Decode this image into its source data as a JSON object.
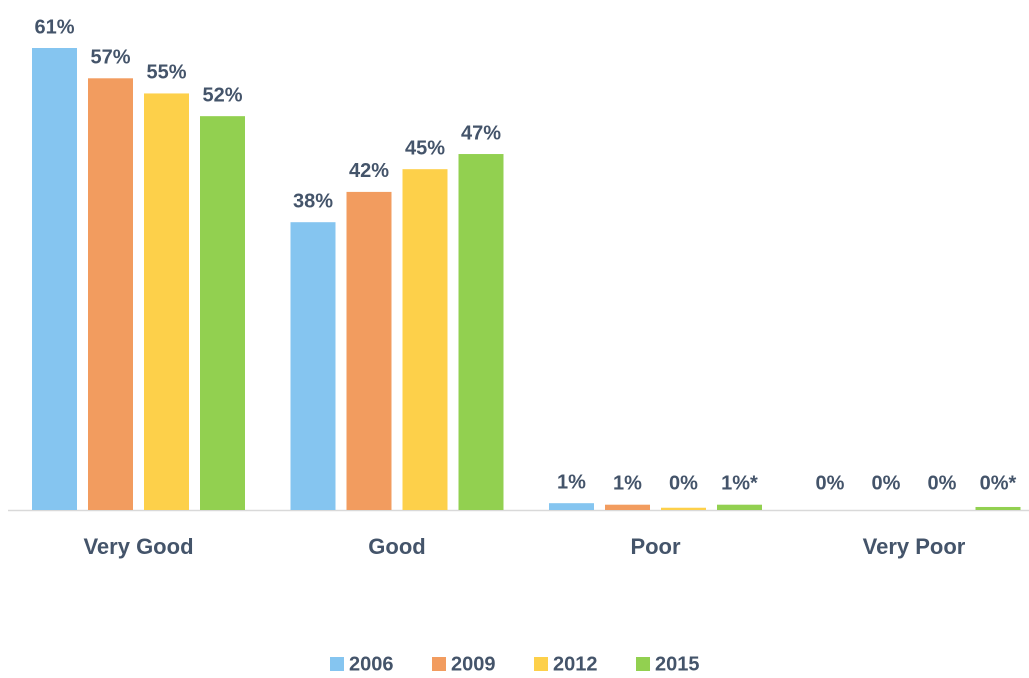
{
  "chart_data": {
    "type": "bar",
    "categories": [
      "Very Good",
      "Good",
      "Poor",
      "Very Poor"
    ],
    "series": [
      {
        "name": "2006",
        "color": "#85c5f0",
        "values": [
          61,
          38,
          0.9,
          0
        ],
        "value_labels": [
          "61%",
          "38%",
          "1%",
          "0%"
        ]
      },
      {
        "name": "2009",
        "color": "#f29c5f",
        "values": [
          57,
          42,
          0.7,
          0
        ],
        "value_labels": [
          "57%",
          "42%",
          "1%",
          "0%"
        ]
      },
      {
        "name": "2012",
        "color": "#fdd04a",
        "values": [
          55,
          45,
          0.3,
          0
        ],
        "value_labels": [
          "55%",
          "45%",
          "0%",
          "0%"
        ]
      },
      {
        "name": "2015",
        "color": "#92d050",
        "values": [
          52,
          47,
          0.7,
          0.4
        ],
        "value_labels": [
          "52%",
          "47%",
          "1%*",
          "0%*"
        ]
      }
    ]
  }
}
